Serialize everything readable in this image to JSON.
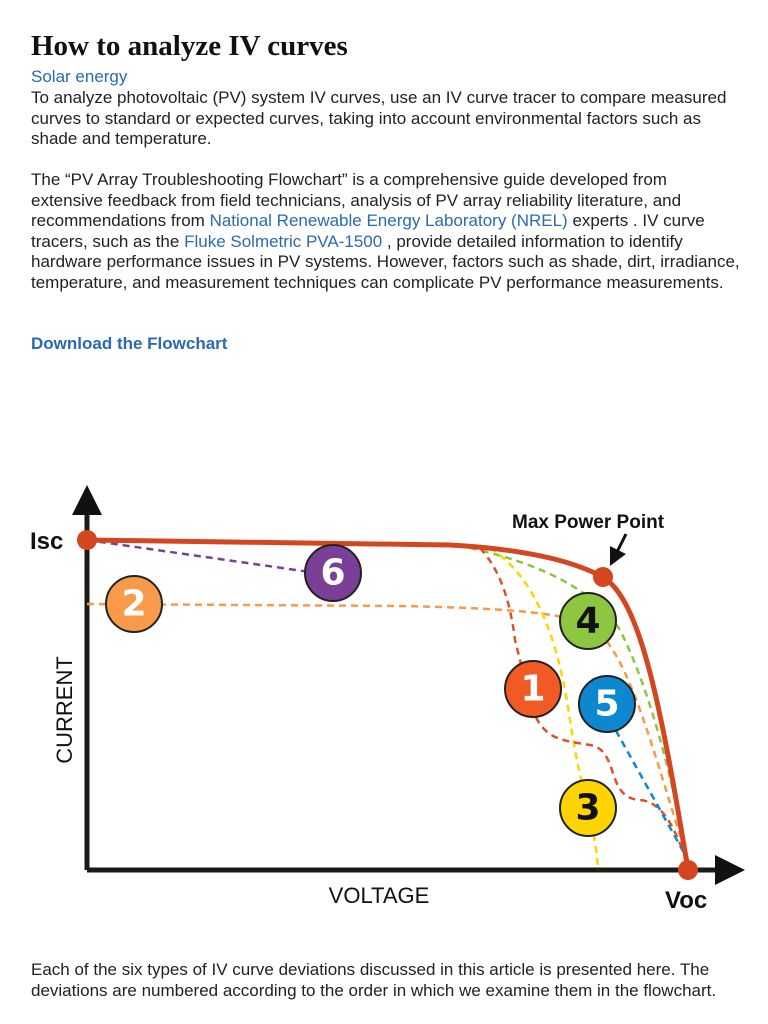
{
  "header": {
    "title": "How to analyze IV curves",
    "category": "Solar energy"
  },
  "intro": "To analyze photovoltaic (PV) system IV curves, use an IV curve tracer to compare measured curves to standard or expected curves, taking into account environmental factors such as shade and temperature.",
  "body": {
    "segments": [
      "The “PV Array Troubleshooting Flowchart” is a comprehensive guide developed from extensive feedback from field technicians, analysis of PV array reliability literature, and recommendations from ",
      "National Renewable Energy Laboratory (NREL)",
      " experts . IV curve tracers, such as the ",
      "Fluke Solmetric PVA-1500",
      " , provide detailed information to identify hardware performance issues in PV systems. However, factors such as shade, dirt, irradiance, temperature, and measurement techniques can complicate PV performance measurements."
    ]
  },
  "download": "Download the Flowchart",
  "diagram": {
    "isc": "Isc",
    "voc": "Voc",
    "mpp": "Max Power Point",
    "y_axis": "CURRENT",
    "x_axis": "VOLTAGE",
    "markers": [
      "1",
      "2",
      "3",
      "4",
      "5",
      "6"
    ]
  },
  "closing": "Each of the six types of IV curve deviations discussed in this article is presented here. The deviations are numbered according to the order in which we examine them in the flowchart."
}
